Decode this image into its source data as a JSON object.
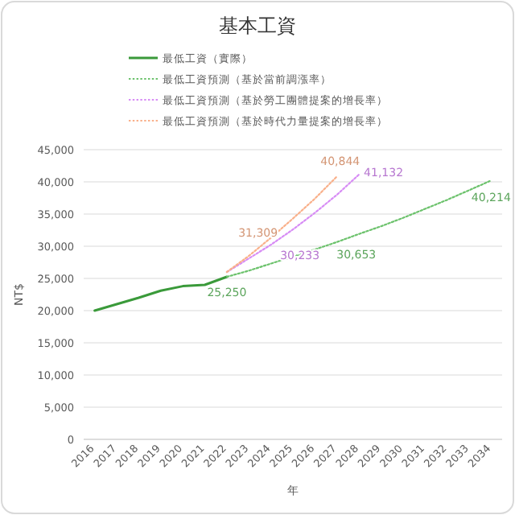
{
  "chart_data": {
    "type": "line",
    "title": "基本工資",
    "xlabel": "年",
    "ylabel": "NT$",
    "categories": [
      "2016",
      "2017",
      "2018",
      "2019",
      "2020",
      "2021",
      "2022",
      "2023",
      "2024",
      "2025",
      "2026",
      "2027",
      "2028",
      "2029",
      "2030",
      "2031",
      "2032",
      "2033",
      "2034"
    ],
    "series": [
      {
        "name": "最低工資（實際）",
        "color": "#3a9a3a",
        "line_style": "solid",
        "values": [
          20000,
          21000,
          22000,
          23100,
          23800,
          24000,
          25250,
          null,
          null,
          null,
          null,
          null,
          null,
          null,
          null,
          null,
          null,
          null,
          null
        ]
      },
      {
        "name": "最低工資預測（基於當前調漲率）",
        "color": "#6cc26c",
        "line_style": "dotted",
        "values": [
          null,
          null,
          null,
          null,
          null,
          null,
          25250,
          26200,
          27300,
          28400,
          29500,
          30653,
          31900,
          33100,
          34400,
          35800,
          37200,
          38700,
          40214
        ],
        "value_labels": [
          null,
          null,
          null,
          null,
          null,
          null,
          "25,250",
          null,
          null,
          null,
          null,
          "30,653",
          null,
          null,
          null,
          null,
          null,
          null,
          "40,214"
        ]
      },
      {
        "name": "最低工資預測（基於勞工團體提案的增長率）",
        "color": "#d78cf5",
        "line_style": "dotted",
        "values": [
          null,
          null,
          null,
          null,
          null,
          null,
          26000,
          28100,
          30233,
          32600,
          35200,
          38000,
          41132,
          null,
          null,
          null,
          null,
          null,
          null
        ],
        "value_labels": [
          null,
          null,
          null,
          null,
          null,
          null,
          null,
          null,
          "30,233",
          null,
          null,
          null,
          "41,132",
          null,
          null,
          null,
          null,
          null,
          null
        ]
      },
      {
        "name": "最低工資預測（基於時代力量提案的增長率）",
        "color": "#f9b08a",
        "line_style": "dotted",
        "values": [
          null,
          null,
          null,
          null,
          null,
          null,
          26000,
          28500,
          31309,
          34300,
          37400,
          40844,
          null,
          null,
          null,
          null,
          null,
          null,
          null
        ],
        "value_labels": [
          null,
          null,
          null,
          null,
          null,
          null,
          null,
          null,
          "31,309",
          null,
          null,
          "40,844",
          null,
          null,
          null,
          null,
          null,
          null,
          null
        ]
      }
    ],
    "ylim": [
      0,
      45000
    ],
    "yticks": [
      0,
      {
        "value": 5000,
        "label": "5,000"
      },
      {
        "value": 10000,
        "label": "10,000"
      },
      {
        "value": 15000,
        "label": "15,000"
      },
      {
        "value": 20000,
        "label": "20,000"
      },
      {
        "value": 25000,
        "label": "25,000"
      },
      {
        "value": 30000,
        "label": "30,000"
      },
      {
        "value": 35000,
        "label": "35,000"
      },
      {
        "value": 40000,
        "label": "40,000"
      },
      {
        "value": 45000,
        "label": "45,000"
      }
    ],
    "grid": "y",
    "legend": "top"
  }
}
